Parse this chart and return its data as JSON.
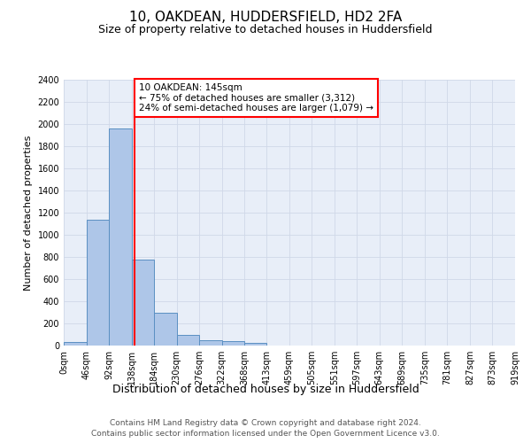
{
  "title": "10, OAKDEAN, HUDDERSFIELD, HD2 2FA",
  "subtitle": "Size of property relative to detached houses in Huddersfield",
  "xlabel": "Distribution of detached houses by size in Huddersfield",
  "ylabel": "Number of detached properties",
  "bar_edges": [
    0,
    46,
    92,
    138,
    184,
    230,
    276,
    322,
    368,
    413,
    459,
    505,
    551,
    597,
    643,
    689,
    735,
    781,
    827,
    873,
    919
  ],
  "bar_heights": [
    35,
    1140,
    1960,
    780,
    300,
    100,
    48,
    40,
    25,
    0,
    0,
    0,
    0,
    0,
    0,
    0,
    0,
    0,
    0,
    0
  ],
  "bar_color": "#aec6e8",
  "bar_edge_color": "#5a8fc2",
  "bar_linewidth": 0.7,
  "grid_color": "#d0d8e8",
  "background_color": "#e8eef8",
  "property_line_x": 145,
  "property_line_color": "red",
  "annotation_text": "10 OAKDEAN: 145sqm\n← 75% of detached houses are smaller (3,312)\n24% of semi-detached houses are larger (1,079) →",
  "annotation_box_color": "white",
  "annotation_box_edge_color": "red",
  "ylim": [
    0,
    2400
  ],
  "yticks": [
    0,
    200,
    400,
    600,
    800,
    1000,
    1200,
    1400,
    1600,
    1800,
    2000,
    2200,
    2400
  ],
  "xtick_labels": [
    "0sqm",
    "46sqm",
    "92sqm",
    "138sqm",
    "184sqm",
    "230sqm",
    "276sqm",
    "322sqm",
    "368sqm",
    "413sqm",
    "459sqm",
    "505sqm",
    "551sqm",
    "597sqm",
    "643sqm",
    "689sqm",
    "735sqm",
    "781sqm",
    "827sqm",
    "873sqm",
    "919sqm"
  ],
  "footer_line1": "Contains HM Land Registry data © Crown copyright and database right 2024.",
  "footer_line2": "Contains public sector information licensed under the Open Government Licence v3.0.",
  "title_fontsize": 11,
  "subtitle_fontsize": 9,
  "xlabel_fontsize": 9,
  "ylabel_fontsize": 8,
  "tick_fontsize": 7,
  "annotation_fontsize": 7.5,
  "footer_fontsize": 6.5
}
